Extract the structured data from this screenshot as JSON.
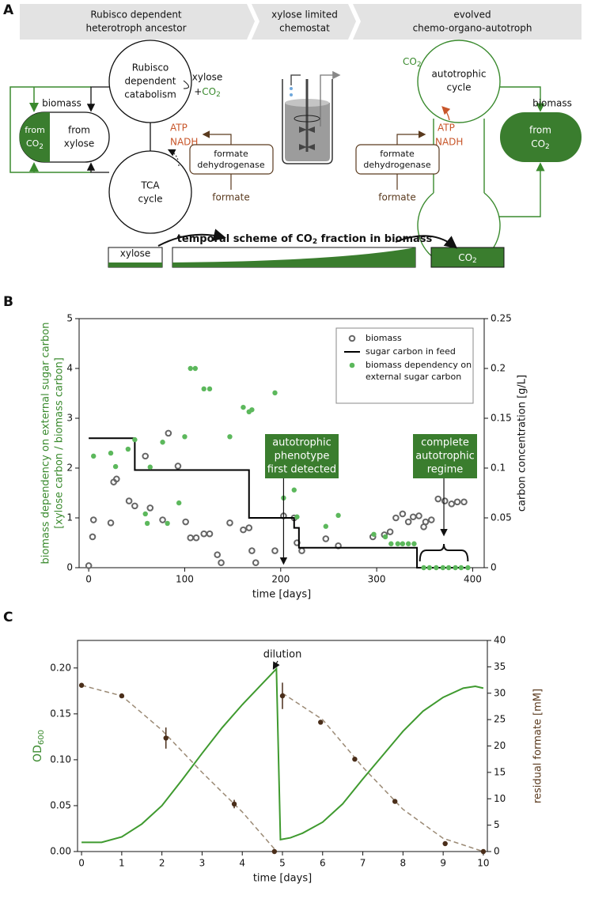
{
  "panel_labels": [
    "A",
    "B",
    "C"
  ],
  "diagram": {
    "stages": [
      [
        "Rubisco dependent",
        "heterotroph ancestor"
      ],
      [
        "xylose limited",
        "chemostat"
      ],
      [
        "evolved",
        "chemo-organo-autotroph"
      ]
    ],
    "left": {
      "catabolism": [
        "Rubisco",
        "dependent",
        "catabolism"
      ],
      "tca": [
        "TCA",
        "cycle"
      ],
      "biomass": "biomass",
      "from_co2": [
        "from",
        "CO",
        "2"
      ],
      "from_xylose": [
        "from",
        "xylose"
      ],
      "xylose": "xylose",
      "plus_co2": [
        "+",
        "CO",
        "2"
      ],
      "atp": "ATP",
      "nadh": "NADH",
      "fdh": [
        "formate",
        "dehydrogenase"
      ],
      "formate": "formate"
    },
    "right": {
      "co2": [
        "CO",
        "2"
      ],
      "cycle": [
        "autotrophic",
        "cycle"
      ],
      "atp": "ATP",
      "nadh": "NADH",
      "fdh": [
        "formate",
        "dehydrogenase"
      ],
      "formate": "formate",
      "biomass": "biomass",
      "from_co2": [
        "from",
        "CO",
        "2"
      ]
    },
    "scheme": {
      "title": [
        "temporal scheme of CO",
        "2",
        " fraction in biomass"
      ],
      "xylose": "xylose",
      "co2": [
        "CO",
        "2"
      ]
    }
  },
  "chart_data": [
    {
      "type": "combo",
      "xlabel": "time [days]",
      "ylabel": [
        "biomass dependency on external sugar carbon",
        "[xylose carbon / biomass carbon]"
      ],
      "y2label": "carbon concentration [g/L]",
      "ylabel_color": "#3a8a2e",
      "y2label_color": "#111111",
      "xlim": [
        -10,
        412
      ],
      "ylim": [
        0,
        5
      ],
      "y2lim": [
        0,
        0.25
      ],
      "xticks": [
        0,
        100,
        200,
        300,
        400
      ],
      "yticks": [
        0,
        1,
        2,
        3,
        4,
        5
      ],
      "y2ticks": [
        0,
        0.05,
        0.1,
        0.15,
        0.2,
        0.25
      ],
      "legend": "upper right",
      "series": [
        {
          "name": "biomass",
          "type": "scatter",
          "marker": "open",
          "color": "#666666",
          "axis": "y2",
          "x": [
            0,
            4,
            5,
            23,
            26,
            29,
            42,
            48,
            59,
            64,
            77,
            83,
            93,
            101,
            106,
            112,
            120,
            126,
            134,
            138,
            147,
            161,
            167,
            170,
            174,
            194,
            203,
            214,
            217,
            222,
            247,
            260,
            296,
            308,
            314,
            320,
            327,
            333,
            338,
            344,
            349,
            351,
            357,
            364,
            371,
            378,
            384,
            391
          ],
          "values": [
            0.002,
            0.031,
            0.048,
            0.045,
            0.086,
            0.089,
            0.067,
            0.062,
            0.112,
            0.06,
            0.048,
            0.135,
            0.102,
            0.046,
            0.03,
            0.03,
            0.034,
            0.034,
            0.013,
            0.005,
            0.045,
            0.038,
            0.04,
            0.017,
            0.005,
            0.017,
            0.052,
            0.05,
            0.025,
            0.017,
            0.029,
            0.022,
            0.031,
            0.033,
            0.036,
            0.05,
            0.054,
            0.046,
            0.051,
            0.052,
            0.041,
            0.046,
            0.048,
            0.069,
            0.067,
            0.064,
            0.066,
            0.066
          ]
        },
        {
          "name": "sugar carbon in feed",
          "type": "line",
          "color": "#000000",
          "axis": "y2",
          "x": [
            0,
            48,
            48,
            167,
            167,
            214,
            214,
            219,
            219,
            342,
            342,
            395
          ],
          "values": [
            0.13,
            0.13,
            0.098,
            0.098,
            0.05,
            0.05,
            0.04,
            0.04,
            0.02,
            0.02,
            0,
            0
          ]
        },
        {
          "name": "biomass dependency on external sugar carbon",
          "type": "scatter",
          "marker": "filled",
          "color": "#5cb85c",
          "axis": "y",
          "x": [
            5,
            23,
            28,
            41,
            48,
            59,
            61,
            64,
            77,
            82,
            94,
            100,
            106,
            111,
            120,
            126,
            147,
            161,
            167,
            170,
            194,
            203,
            214,
            217,
            222,
            247,
            260,
            297,
            309,
            315,
            322,
            327,
            333,
            339,
            349,
            355,
            362,
            369,
            375,
            382,
            388,
            395
          ],
          "values": [
            2.24,
            2.3,
            2.03,
            2.38,
            2.57,
            1.08,
            0.89,
            2.02,
            2.52,
            0.89,
            1.3,
            2.63,
            4,
            4,
            3.59,
            3.59,
            2.63,
            3.22,
            3.13,
            3.17,
            3.51,
            1.4,
            1.56,
            1.02,
            1.87,
            0.83,
            1.05,
            0.67,
            0.62,
            0.48,
            0.48,
            0.48,
            0.48,
            0.48,
            0,
            0,
            0,
            0,
            0,
            0,
            0,
            0
          ]
        }
      ],
      "annotations": [
        [
          "autotrophic",
          "phenotype",
          "first detected"
        ],
        [
          "complete",
          "autotrophic",
          "regime"
        ]
      ]
    },
    {
      "type": "combo",
      "xlabel": "time [days]",
      "ylabel": [
        "OD",
        "600"
      ],
      "ylabel_subscript": true,
      "y2label": "residual formate [mM]",
      "ylabel_color": "#3a8a2e",
      "y2label_color": "#5a3a1e",
      "xlim": [
        -0.1,
        10.1
      ],
      "ylim": [
        0,
        0.23
      ],
      "y2lim": [
        0,
        40
      ],
      "xticks": [
        0,
        1,
        2,
        3,
        4,
        5,
        6,
        7,
        8,
        9,
        10
      ],
      "yticks": [
        {
          "value": 0,
          "label": "0.00"
        },
        0.05,
        {
          "value": 0.1,
          "label": "0.10"
        },
        0.15,
        {
          "value": 0.2,
          "label": "0.20"
        }
      ],
      "y2ticks": [
        0,
        5,
        10,
        15,
        20,
        25,
        30,
        35,
        40
      ],
      "series": [
        {
          "type": "line",
          "color": "#3f9a2f",
          "axis": "y",
          "x": [
            0,
            0.5,
            1,
            1.5,
            2,
            2.5,
            3,
            3.5,
            4,
            4.5,
            4.85,
            4.95,
            5.2,
            5.5,
            6,
            6.5,
            7,
            7.5,
            8,
            8.5,
            9,
            9.5,
            9.8,
            10
          ],
          "values": [
            0.01,
            0.01,
            0.016,
            0.03,
            0.05,
            0.078,
            0.107,
            0.135,
            0.16,
            0.183,
            0.199,
            0.013,
            0.015,
            0.02,
            0.032,
            0.052,
            0.079,
            0.105,
            0.131,
            0.153,
            0.168,
            0.178,
            0.18,
            0.178
          ]
        },
        {
          "type": "line",
          "dashed": true,
          "color": "#9b8a75",
          "axis": "y2",
          "x": [
            0,
            1,
            2,
            3,
            4,
            4.8,
            null,
            5,
            6,
            7,
            8,
            9,
            10
          ],
          "values": [
            31.5,
            29.5,
            23,
            15,
            7.5,
            0.5,
            null,
            30,
            25,
            16,
            8,
            2.5,
            0
          ]
        },
        {
          "type": "scatter",
          "marker": "filled",
          "color": "#4a2e1a",
          "axis": "y2",
          "x": [
            0,
            1,
            2.1,
            3.8,
            4.8,
            5,
            5.95,
            6.8,
            7.8,
            9.05,
            10
          ],
          "values": [
            31.5,
            29.5,
            21.5,
            9,
            0,
            29.5,
            24.5,
            17.5,
            9.5,
            1.5,
            0
          ],
          "errors": [
            null,
            null,
            2,
            0.8,
            null,
            2.5,
            null,
            null,
            null,
            null,
            null
          ]
        }
      ],
      "annotations": [
        [
          "dilution"
        ]
      ]
    }
  ]
}
